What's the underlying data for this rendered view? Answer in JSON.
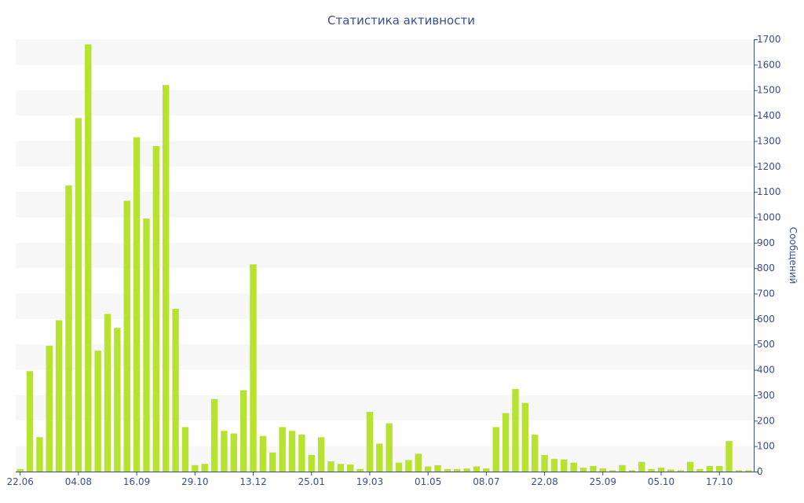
{
  "chart_data": {
    "type": "bar",
    "title": "Статистика активности",
    "xlabel": "",
    "ylabel": "Сообщений",
    "ylim": [
      0,
      1700
    ],
    "y_ticks": [
      0,
      100,
      200,
      300,
      400,
      500,
      600,
      700,
      800,
      900,
      1000,
      1100,
      1200,
      1300,
      1400,
      1500,
      1600,
      1700
    ],
    "x_tick_labels": [
      {
        "index": 0,
        "label": "22.06"
      },
      {
        "index": 6,
        "label": "04.08"
      },
      {
        "index": 12,
        "label": "16.09"
      },
      {
        "index": 18,
        "label": "29.10"
      },
      {
        "index": 24,
        "label": "13.12"
      },
      {
        "index": 30,
        "label": "25.01"
      },
      {
        "index": 36,
        "label": "19.03"
      },
      {
        "index": 42,
        "label": "01.05"
      },
      {
        "index": 48,
        "label": "08.07"
      },
      {
        "index": 54,
        "label": "22.08"
      },
      {
        "index": 60,
        "label": "25.09"
      },
      {
        "index": 66,
        "label": "05.10"
      },
      {
        "index": 72,
        "label": "17.10"
      }
    ],
    "values": [
      10,
      395,
      135,
      495,
      595,
      1125,
      1390,
      1680,
      475,
      620,
      565,
      1065,
      1315,
      995,
      1280,
      1520,
      640,
      175,
      25,
      30,
      285,
      160,
      150,
      320,
      815,
      140,
      75,
      175,
      160,
      145,
      65,
      135,
      40,
      30,
      28,
      10,
      235,
      110,
      190,
      35,
      45,
      70,
      20,
      25,
      10,
      10,
      12,
      20,
      12,
      175,
      230,
      325,
      270,
      145,
      65,
      50,
      48,
      35,
      15,
      22,
      12,
      5,
      25,
      5,
      38,
      10,
      15,
      8,
      5,
      38,
      10,
      22,
      22,
      120,
      5,
      5
    ],
    "grid": true,
    "colors": {
      "bar": "#b8e230",
      "stripe": "#f7f7f7",
      "text": "#3a4d8f",
      "axis": "#3a4d8f"
    }
  }
}
